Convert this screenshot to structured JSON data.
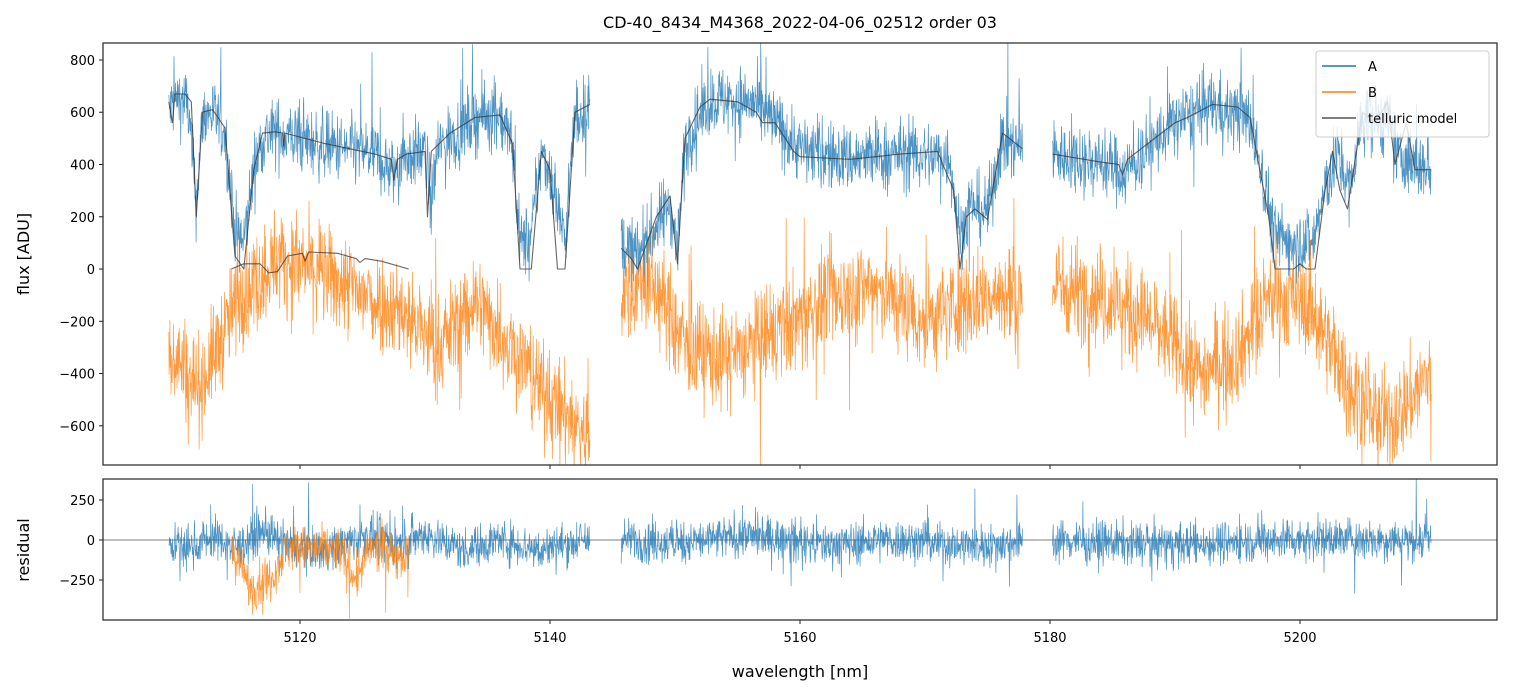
{
  "chart_data": {
    "type": "line",
    "title": "CD-40_8434_M4368_2022-04-06_02512  order 03",
    "xlabel": "wavelength [nm]",
    "xlim": [
      5104.24,
      5215.76
    ],
    "xticks": [
      5120,
      5140,
      5160,
      5180,
      5200
    ],
    "colors": {
      "A": "#1f77b4",
      "B": "#ff7f0e",
      "model": "#333333"
    },
    "legend": {
      "placement": "top-right",
      "entries": [
        "A",
        "B",
        "telluric model"
      ]
    },
    "top_panel": {
      "ylabel": "flux [ADU]",
      "ylim": [
        -750,
        865
      ],
      "yticks": [
        -600,
        -400,
        -200,
        0,
        200,
        400,
        600,
        800
      ],
      "series": [
        {
          "name": "A",
          "noise": 110,
          "segments": [
            [
              5109.5,
              5143.2
            ],
            [
              5145.7,
              5177.8
            ],
            [
              5180.2,
              5210.5
            ]
          ],
          "baseline": [
            [
              5109.5,
              600
            ],
            [
              5110,
              650
            ],
            [
              5111,
              640
            ],
            [
              5111.7,
              250
            ],
            [
              5112.2,
              580
            ],
            [
              5113,
              600
            ],
            [
              5114,
              520
            ],
            [
              5114.8,
              150
            ],
            [
              5115.5,
              100
            ],
            [
              5116.3,
              380
            ],
            [
              5117,
              500
            ],
            [
              5118,
              520
            ],
            [
              5122,
              470
            ],
            [
              5126,
              440
            ],
            [
              5127.5,
              360
            ],
            [
              5128,
              430
            ],
            [
              5130,
              450
            ],
            [
              5130.5,
              250
            ],
            [
              5131,
              460
            ],
            [
              5134,
              580
            ],
            [
              5136,
              590
            ],
            [
              5137,
              480
            ],
            [
              5137.6,
              100
            ],
            [
              5138.5,
              120
            ],
            [
              5139.3,
              440
            ],
            [
              5140,
              380
            ],
            [
              5141.2,
              100
            ],
            [
              5142,
              580
            ],
            [
              5143.2,
              620
            ],
            [
              5145.7,
              100
            ],
            [
              5147,
              50
            ],
            [
              5149.6,
              250
            ],
            [
              5150.2,
              80
            ],
            [
              5150.8,
              480
            ],
            [
              5152.8,
              650
            ],
            [
              5156,
              640
            ],
            [
              5158,
              560
            ],
            [
              5160,
              460
            ],
            [
              5164,
              420
            ],
            [
              5168,
              440
            ],
            [
              5172,
              430
            ],
            [
              5172.8,
              120
            ],
            [
              5173.6,
              250
            ],
            [
              5175,
              220
            ],
            [
              5176.2,
              500
            ],
            [
              5177.8,
              460
            ],
            [
              5180.2,
              440
            ],
            [
              5184,
              410
            ],
            [
              5186,
              370
            ],
            [
              5190,
              560
            ],
            [
              5193,
              630
            ],
            [
              5196,
              570
            ],
            [
              5197.5,
              250
            ],
            [
              5198,
              120
            ],
            [
              5201,
              100
            ],
            [
              5202,
              300
            ],
            [
              5203,
              440
            ],
            [
              5204,
              300
            ],
            [
              5205,
              590
            ],
            [
              5207,
              560
            ],
            [
              5208,
              420
            ],
            [
              5210.5,
              380
            ]
          ]
        },
        {
          "name": "B",
          "noise": 160,
          "segments": [
            [
              5109.5,
              5143.2
            ],
            [
              5145.7,
              5177.8
            ],
            [
              5180.2,
              5210.5
            ]
          ],
          "baseline": [
            [
              5109.5,
              -300
            ],
            [
              5112,
              -450
            ],
            [
              5115,
              -120
            ],
            [
              5118,
              40
            ],
            [
              5121,
              0
            ],
            [
              5125,
              -100
            ],
            [
              5128,
              -150
            ],
            [
              5131,
              -300
            ],
            [
              5134,
              -120
            ],
            [
              5137,
              -300
            ],
            [
              5140,
              -500
            ],
            [
              5143.2,
              -650
            ],
            [
              5145.7,
              -100
            ],
            [
              5148,
              -40
            ],
            [
              5151,
              -300
            ],
            [
              5154,
              -350
            ],
            [
              5158,
              -250
            ],
            [
              5162,
              -120
            ],
            [
              5166,
              -60
            ],
            [
              5170,
              -200
            ],
            [
              5173,
              -120
            ],
            [
              5177.8,
              -100
            ],
            [
              5180.2,
              -60
            ],
            [
              5184,
              -100
            ],
            [
              5188,
              -200
            ],
            [
              5192,
              -400
            ],
            [
              5195,
              -320
            ],
            [
              5198,
              -100
            ],
            [
              5201,
              -150
            ],
            [
              5204,
              -450
            ],
            [
              5207,
              -600
            ],
            [
              5210.5,
              -400
            ]
          ]
        }
      ],
      "telluric_model": [
        [
          [
            5109.5,
            640
          ],
          [
            5109.8,
            560
          ],
          [
            5110,
            670
          ],
          [
            5110.8,
            670
          ],
          [
            5111.3,
            640
          ],
          [
            5111.7,
            200
          ],
          [
            5112.2,
            600
          ],
          [
            5113,
            610
          ],
          [
            5114,
            540
          ],
          [
            5114.8,
            50
          ],
          [
            5115.5,
            0
          ],
          [
            5116.3,
            380
          ],
          [
            5117,
            520
          ],
          [
            5118,
            525
          ],
          [
            5118.6,
            520
          ],
          [
            5118.7,
            470
          ],
          [
            5118.8,
            520
          ],
          [
            5122,
            480
          ],
          [
            5125,
            450
          ],
          [
            5126,
            440
          ],
          [
            5127.3,
            420
          ],
          [
            5127.5,
            340
          ],
          [
            5127.8,
            420
          ],
          [
            5128.5,
            440
          ],
          [
            5130,
            450
          ],
          [
            5130.2,
            200
          ],
          [
            5130.5,
            450
          ],
          [
            5132,
            520
          ],
          [
            5134,
            580
          ],
          [
            5136,
            590
          ],
          [
            5137,
            480
          ],
          [
            5137.6,
            0
          ],
          [
            5138.5,
            0
          ],
          [
            5139.3,
            450
          ],
          [
            5140,
            380
          ],
          [
            5140.6,
            0
          ],
          [
            5141.2,
            0
          ],
          [
            5142,
            600
          ],
          [
            5143.2,
            630
          ]
        ],
        [
          [
            5145.7,
            80
          ],
          [
            5146.5,
            40
          ],
          [
            5147,
            0
          ],
          [
            5148.5,
            200
          ],
          [
            5149.6,
            280
          ],
          [
            5150.2,
            20
          ],
          [
            5150.8,
            500
          ],
          [
            5152,
            620
          ],
          [
            5152.8,
            650
          ],
          [
            5155,
            640
          ],
          [
            5156.5,
            600
          ],
          [
            5157,
            560
          ],
          [
            5158,
            560
          ],
          [
            5159.5,
            450
          ],
          [
            5160,
            430
          ],
          [
            5164,
            420
          ],
          [
            5168,
            440
          ],
          [
            5171,
            450
          ],
          [
            5172.3,
            300
          ],
          [
            5172.8,
            0
          ],
          [
            5173.3,
            200
          ],
          [
            5174,
            230
          ],
          [
            5175,
            190
          ],
          [
            5176.2,
            520
          ],
          [
            5177.8,
            460
          ]
        ],
        [
          [
            5180.2,
            440
          ],
          [
            5184,
            410
          ],
          [
            5185.5,
            400
          ],
          [
            5185.8,
            360
          ],
          [
            5186.2,
            420
          ],
          [
            5190,
            560
          ],
          [
            5191,
            580
          ],
          [
            5193,
            630
          ],
          [
            5195,
            620
          ],
          [
            5196,
            580
          ],
          [
            5197.5,
            200
          ],
          [
            5198,
            0
          ],
          [
            5199.5,
            0
          ],
          [
            5200,
            20
          ],
          [
            5200.5,
            0
          ],
          [
            5201.2,
            0
          ],
          [
            5202,
            300
          ],
          [
            5202.6,
            450
          ],
          [
            5203.2,
            300
          ],
          [
            5203.8,
            230
          ],
          [
            5205,
            600
          ],
          [
            5206,
            560
          ],
          [
            5207,
            640
          ],
          [
            5207.6,
            400
          ],
          [
            5208.5,
            560
          ],
          [
            5209.2,
            380
          ],
          [
            5210.5,
            380
          ]
        ],
        [
          [
            5114.5,
            0
          ],
          [
            5115.5,
            20
          ],
          [
            5116.8,
            20
          ],
          [
            5117.5,
            -15
          ],
          [
            5118.2,
            -10
          ],
          [
            5119,
            50
          ],
          [
            5120.2,
            60
          ],
          [
            5120.4,
            30
          ],
          [
            5120.7,
            65
          ],
          [
            5123,
            60
          ],
          [
            5124.5,
            40
          ],
          [
            5124.8,
            25
          ],
          [
            5125.2,
            40
          ],
          [
            5126.5,
            30
          ],
          [
            5128.7,
            0
          ]
        ]
      ]
    },
    "bottom_panel": {
      "ylabel": "residual",
      "ylim": [
        -500,
        381
      ],
      "yticks": [
        -250,
        0,
        250
      ],
      "series": [
        {
          "name": "A",
          "noise": 110,
          "segments": [
            [
              5109.5,
              5143.2
            ],
            [
              5145.7,
              5177.8
            ],
            [
              5180.2,
              5210.5
            ]
          ],
          "baseline": [
            [
              5109.5,
              -20
            ],
            [
              5111,
              -50
            ],
            [
              5113,
              20
            ],
            [
              5115,
              -50
            ],
            [
              5117,
              60
            ],
            [
              5119,
              -40
            ],
            [
              5122,
              -60
            ],
            [
              5125,
              20
            ],
            [
              5128,
              -20
            ],
            [
              5130,
              40
            ],
            [
              5133,
              -60
            ],
            [
              5136,
              0
            ],
            [
              5139,
              -60
            ],
            [
              5143,
              0
            ],
            [
              5146,
              0
            ],
            [
              5150,
              -20
            ],
            [
              5156,
              30
            ],
            [
              5162,
              -30
            ],
            [
              5168,
              0
            ],
            [
              5174,
              -40
            ],
            [
              5178,
              0
            ],
            [
              5180,
              0
            ],
            [
              5190,
              -30
            ],
            [
              5200,
              10
            ],
            [
              5210.5,
              0
            ]
          ]
        },
        {
          "name": "B",
          "noise": 120,
          "segments": [
            [
              5114.5,
              5128.7
            ]
          ],
          "baseline": [
            [
              5114.5,
              -50
            ],
            [
              5116,
              -300
            ],
            [
              5117.5,
              -250
            ],
            [
              5119,
              -50
            ],
            [
              5121,
              -60
            ],
            [
              5123,
              -50
            ],
            [
              5124.5,
              -250
            ],
            [
              5125.5,
              -50
            ],
            [
              5127,
              -70
            ],
            [
              5128.7,
              -100
            ]
          ]
        }
      ]
    }
  }
}
